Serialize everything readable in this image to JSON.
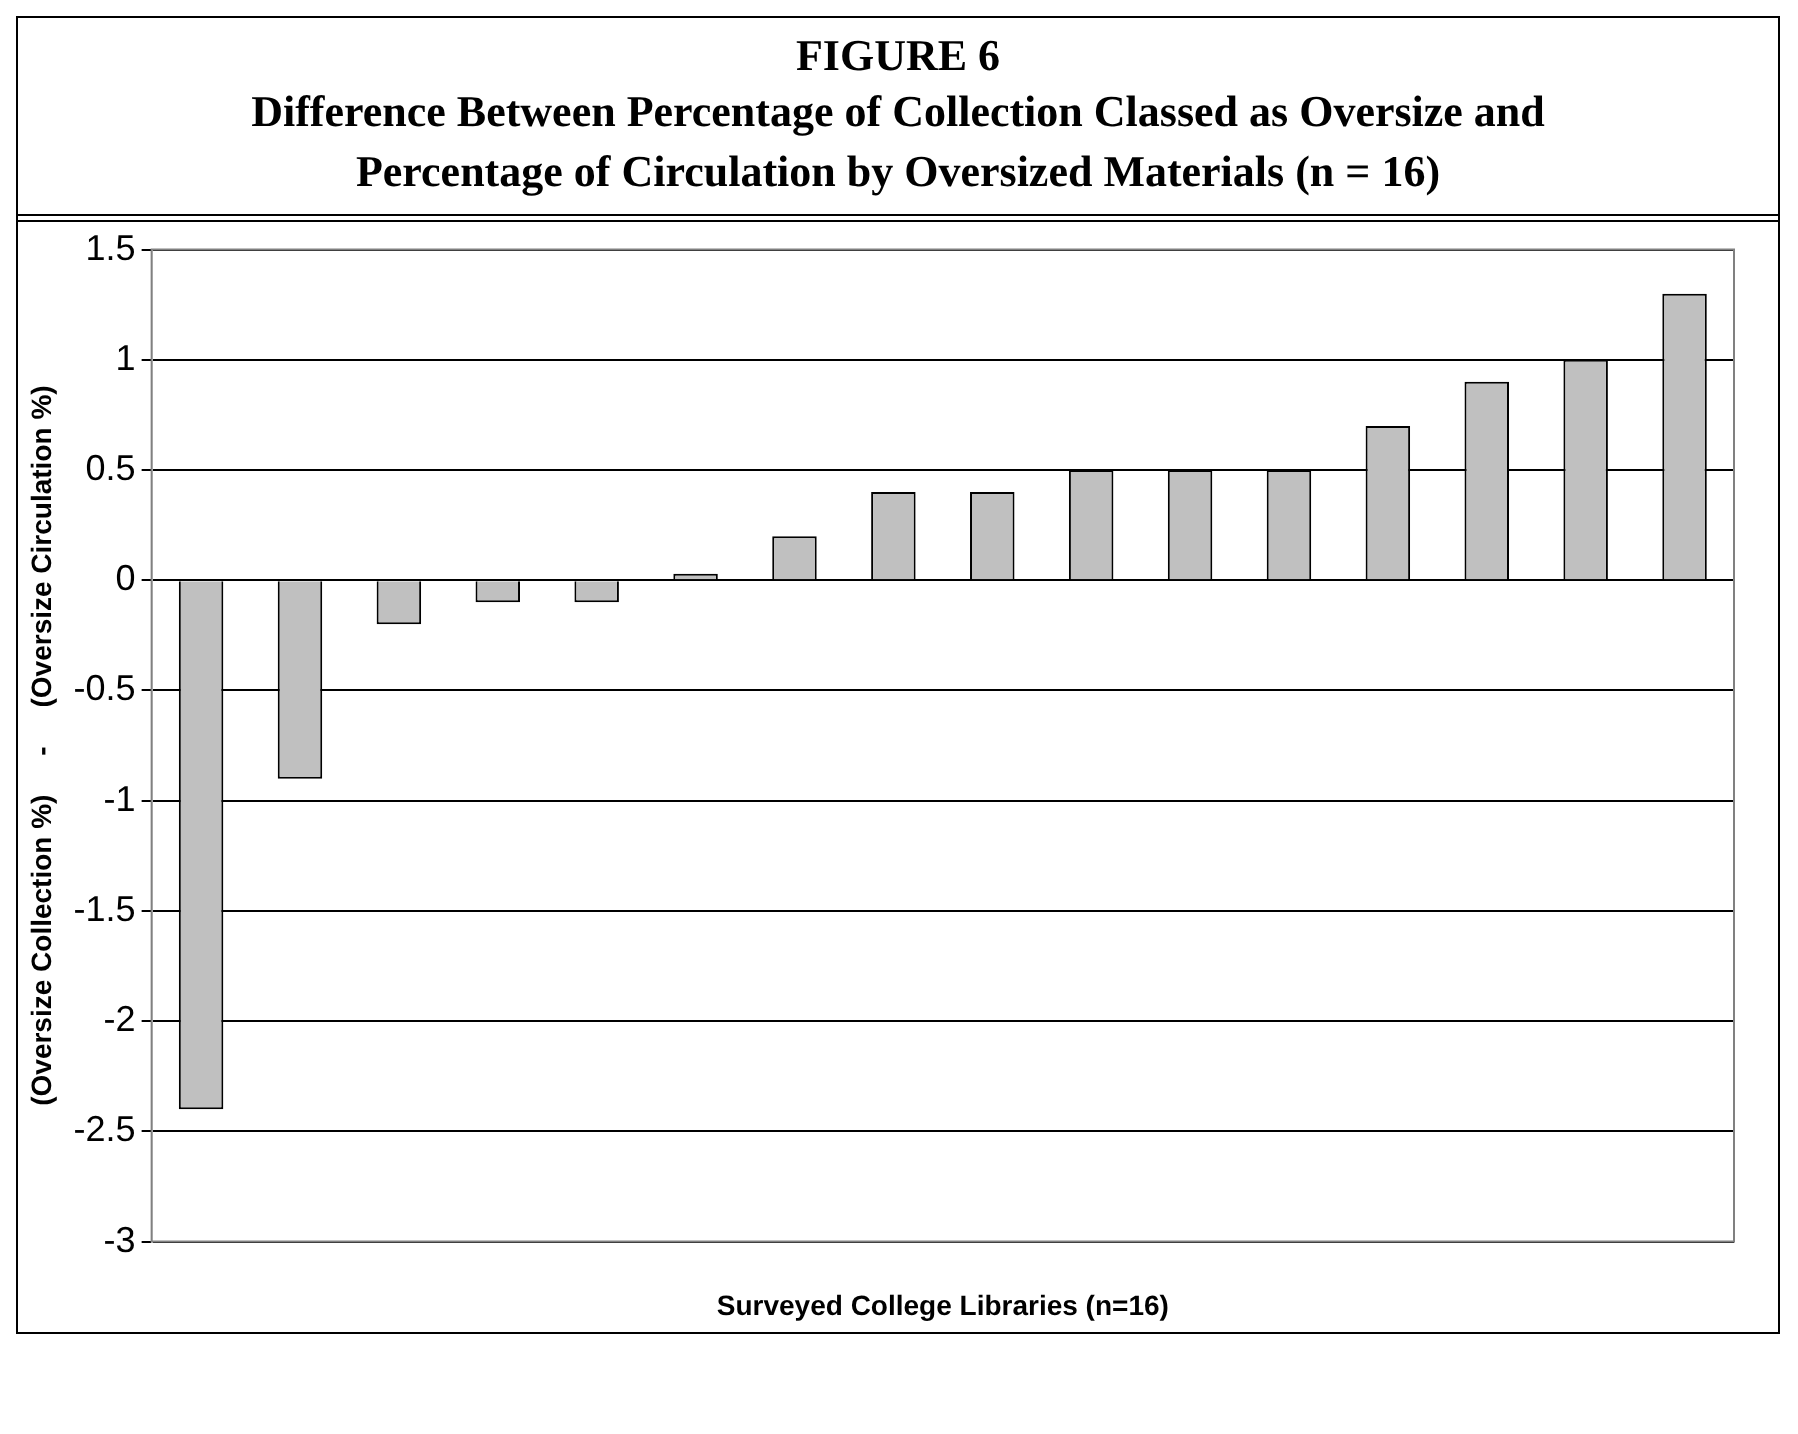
{
  "chart_data": {
    "type": "bar",
    "title": "FIGURE 6",
    "subtitle": "Difference Between Percentage of Collection Classed as Oversize and Percentage of Circulation by Oversized Materials (n = 16)",
    "xlabel": "Surveyed College Libraries (n=16)",
    "ylabel": "(Oversize Collection %)     -     (Oversize Circulation %)",
    "categories": [
      null,
      null,
      null,
      null,
      null,
      null,
      null,
      null,
      null,
      null,
      null,
      null,
      null,
      null,
      null,
      null
    ],
    "values": [
      -2.4,
      -0.9,
      -0.2,
      -0.1,
      -0.1,
      0.03,
      0.2,
      0.4,
      0.4,
      0.5,
      0.5,
      0.5,
      0.7,
      0.9,
      1.0,
      1.3
    ],
    "color": "#c0c0c0",
    "ylim": [
      -3,
      1.5
    ],
    "yticks": [
      -3,
      -2.5,
      -2,
      -1.5,
      -1,
      -0.5,
      0,
      0.5,
      1,
      1.5
    ],
    "grid": "y",
    "legend": false
  }
}
